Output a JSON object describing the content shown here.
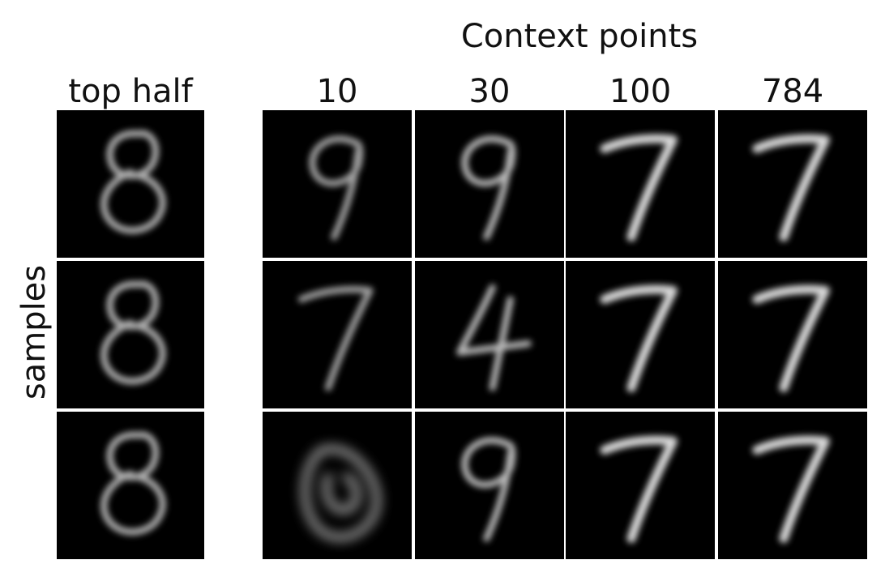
{
  "figure": {
    "title": "Context points",
    "row_label": "samples",
    "columns": [
      {
        "label": "top half",
        "digits": [
          "8",
          "8",
          "8"
        ]
      },
      {
        "label": "10",
        "digits": [
          "9",
          "7",
          "blob"
        ]
      },
      {
        "label": "30",
        "digits": [
          "9",
          "4",
          "9"
        ]
      },
      {
        "label": "100",
        "digits": [
          "7",
          "7",
          "7"
        ]
      },
      {
        "label": "784",
        "digits": [
          "7",
          "7",
          "7"
        ]
      }
    ],
    "rows": 3,
    "colors": {
      "background": "#ffffff",
      "panel": "#000000",
      "digit_stroke": "#e6e6e6"
    }
  }
}
